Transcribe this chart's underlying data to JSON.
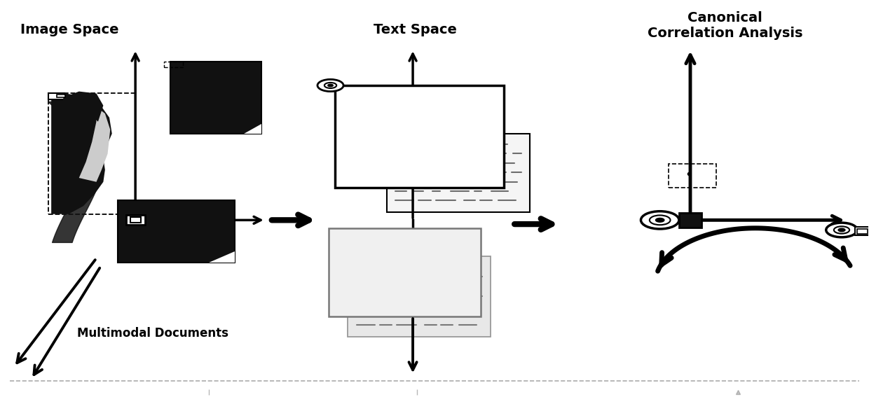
{
  "bg_color": "#ffffff",
  "text_color": "#000000",
  "labels": {
    "image_space": "Image Space",
    "text_space": "Text Space",
    "cca": "Canonical\nCorrelation Analysis",
    "multimodal": "Multimodal Documents"
  },
  "figsize": [
    12.4,
    5.77
  ],
  "dpi": 100
}
